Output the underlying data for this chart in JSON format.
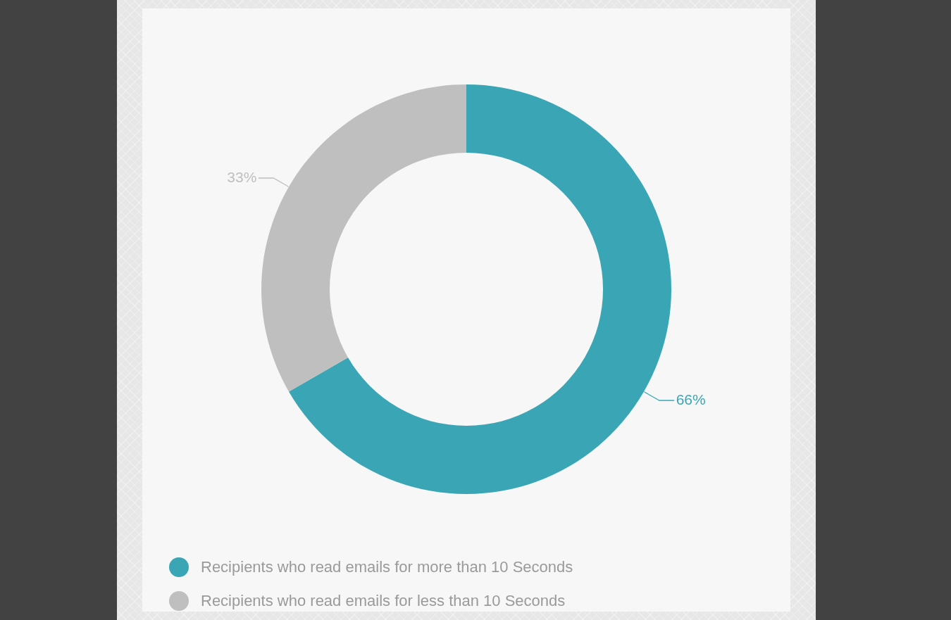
{
  "chart_data": {
    "type": "donut",
    "categories": [
      "Recipients who read emails for more than 10 Seconds",
      "Recipients who read emails for less than 10 Seconds"
    ],
    "values": [
      66,
      33
    ],
    "colors": [
      "#3aa6b5",
      "#bfbfbf"
    ],
    "value_labels": [
      "66%",
      "33%"
    ],
    "legend": "bottom left"
  }
}
